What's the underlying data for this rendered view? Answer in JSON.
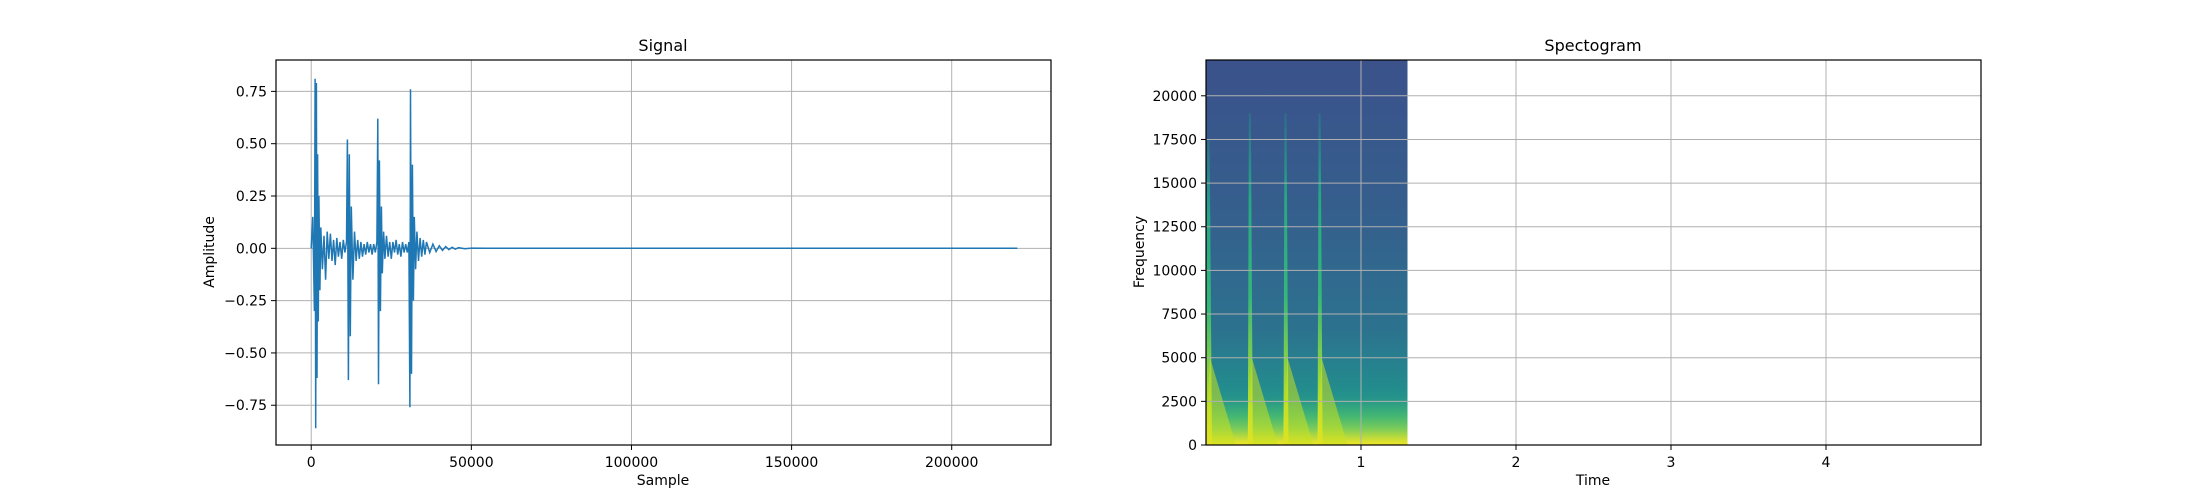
{
  "chart_data": [
    {
      "type": "line",
      "title": "Signal",
      "xlabel": "Sample",
      "ylabel": "Amplitude",
      "xlim": [
        -11000,
        231000
      ],
      "ylim": [
        -0.94,
        0.9
      ],
      "xticks": [
        0,
        50000,
        100000,
        150000,
        200000
      ],
      "xtick_labels": [
        "0",
        "50000",
        "100000",
        "150000",
        "200000"
      ],
      "yticks": [
        -0.75,
        -0.5,
        -0.25,
        0.0,
        0.25,
        0.5,
        0.75
      ],
      "ytick_labels": [
        "−0.75",
        "−0.50",
        "−0.25",
        "0.00",
        "0.25",
        "0.50",
        "0.75"
      ],
      "grid": true,
      "line_color": "#1f77b4",
      "series": [
        {
          "x": [
            0,
            500,
            1000,
            1200,
            1400,
            1600,
            1800,
            2000,
            2200,
            2400,
            2700,
            3000,
            3500,
            4000,
            4500,
            5000,
            5500,
            6000,
            6500,
            7000,
            7500,
            8000,
            8500,
            9000,
            9500,
            10000,
            10500,
            11000,
            11300,
            11600,
            11900,
            12200,
            12500,
            13000,
            13500,
            14000,
            14500,
            15000,
            15500,
            16000,
            16500,
            17000,
            17500,
            18000,
            18500,
            19000,
            19500,
            20000,
            20500,
            20800,
            21000,
            21300,
            21600,
            21900,
            22200,
            22600,
            23000,
            23500,
            24000,
            24500,
            25000,
            25500,
            26000,
            26500,
            27000,
            27500,
            28000,
            28500,
            29000,
            29500,
            30000,
            30500,
            30800,
            31000,
            31300,
            31600,
            31900,
            32200,
            32600,
            33000,
            33500,
            34000,
            34500,
            35000,
            35500,
            36000,
            37000,
            38000,
            39000,
            40000,
            41000,
            42000,
            43000,
            44000,
            45000,
            46000,
            48000,
            50000,
            55000,
            60000,
            100000,
            150000,
            200000,
            220500
          ],
          "y": [
            0.0,
            0.15,
            -0.3,
            0.81,
            -0.86,
            0.79,
            -0.62,
            0.45,
            -0.35,
            0.25,
            -0.2,
            0.1,
            -0.1,
            0.06,
            -0.15,
            0.08,
            -0.05,
            0.07,
            -0.06,
            0.04,
            -0.08,
            0.05,
            -0.04,
            0.03,
            -0.05,
            0.04,
            -0.02,
            0.03,
            0.52,
            -0.63,
            0.45,
            -0.42,
            0.2,
            -0.15,
            0.08,
            -0.06,
            0.04,
            -0.05,
            0.03,
            -0.04,
            0.02,
            -0.03,
            0.03,
            -0.02,
            0.02,
            -0.03,
            0.02,
            -0.02,
            0.03,
            0.62,
            -0.65,
            0.42,
            -0.3,
            0.2,
            -0.12,
            0.08,
            -0.05,
            0.06,
            -0.04,
            0.03,
            -0.05,
            0.03,
            -0.02,
            0.04,
            -0.03,
            0.02,
            -0.04,
            0.03,
            -0.02,
            0.02,
            -0.02,
            0.03,
            -0.76,
            0.76,
            -0.6,
            0.4,
            -0.25,
            0.15,
            -0.1,
            0.08,
            -0.06,
            0.05,
            -0.04,
            0.04,
            -0.03,
            0.03,
            -0.02,
            0.02,
            -0.015,
            0.012,
            -0.01,
            0.008,
            -0.006,
            0.005,
            -0.004,
            0.003,
            -0.002,
            0.001,
            0.0,
            0.0,
            0.0,
            0.0,
            0.0,
            0.0
          ]
        }
      ]
    },
    {
      "type": "heatmap",
      "title": "Spectogram",
      "xlabel": "Time",
      "ylabel": "Frequency",
      "xlim": [
        0.0,
        5.0
      ],
      "ylim": [
        0,
        22050
      ],
      "xticks": [
        1,
        2,
        3,
        4
      ],
      "xtick_labels": [
        "1",
        "2",
        "3",
        "4"
      ],
      "yticks": [
        0,
        2500,
        5000,
        7500,
        10000,
        12500,
        15000,
        17500,
        20000
      ],
      "ytick_labels": [
        "0",
        "2500",
        "5000",
        "7500",
        "10000",
        "12500",
        "15000",
        "17500",
        "20000"
      ],
      "grid": true,
      "colormap": "viridis",
      "image_extent_time": [
        0.0,
        1.3
      ],
      "onsets_time": [
        0.0,
        0.27,
        0.5,
        0.72
      ],
      "background_color": "#3b5b8c"
    }
  ]
}
